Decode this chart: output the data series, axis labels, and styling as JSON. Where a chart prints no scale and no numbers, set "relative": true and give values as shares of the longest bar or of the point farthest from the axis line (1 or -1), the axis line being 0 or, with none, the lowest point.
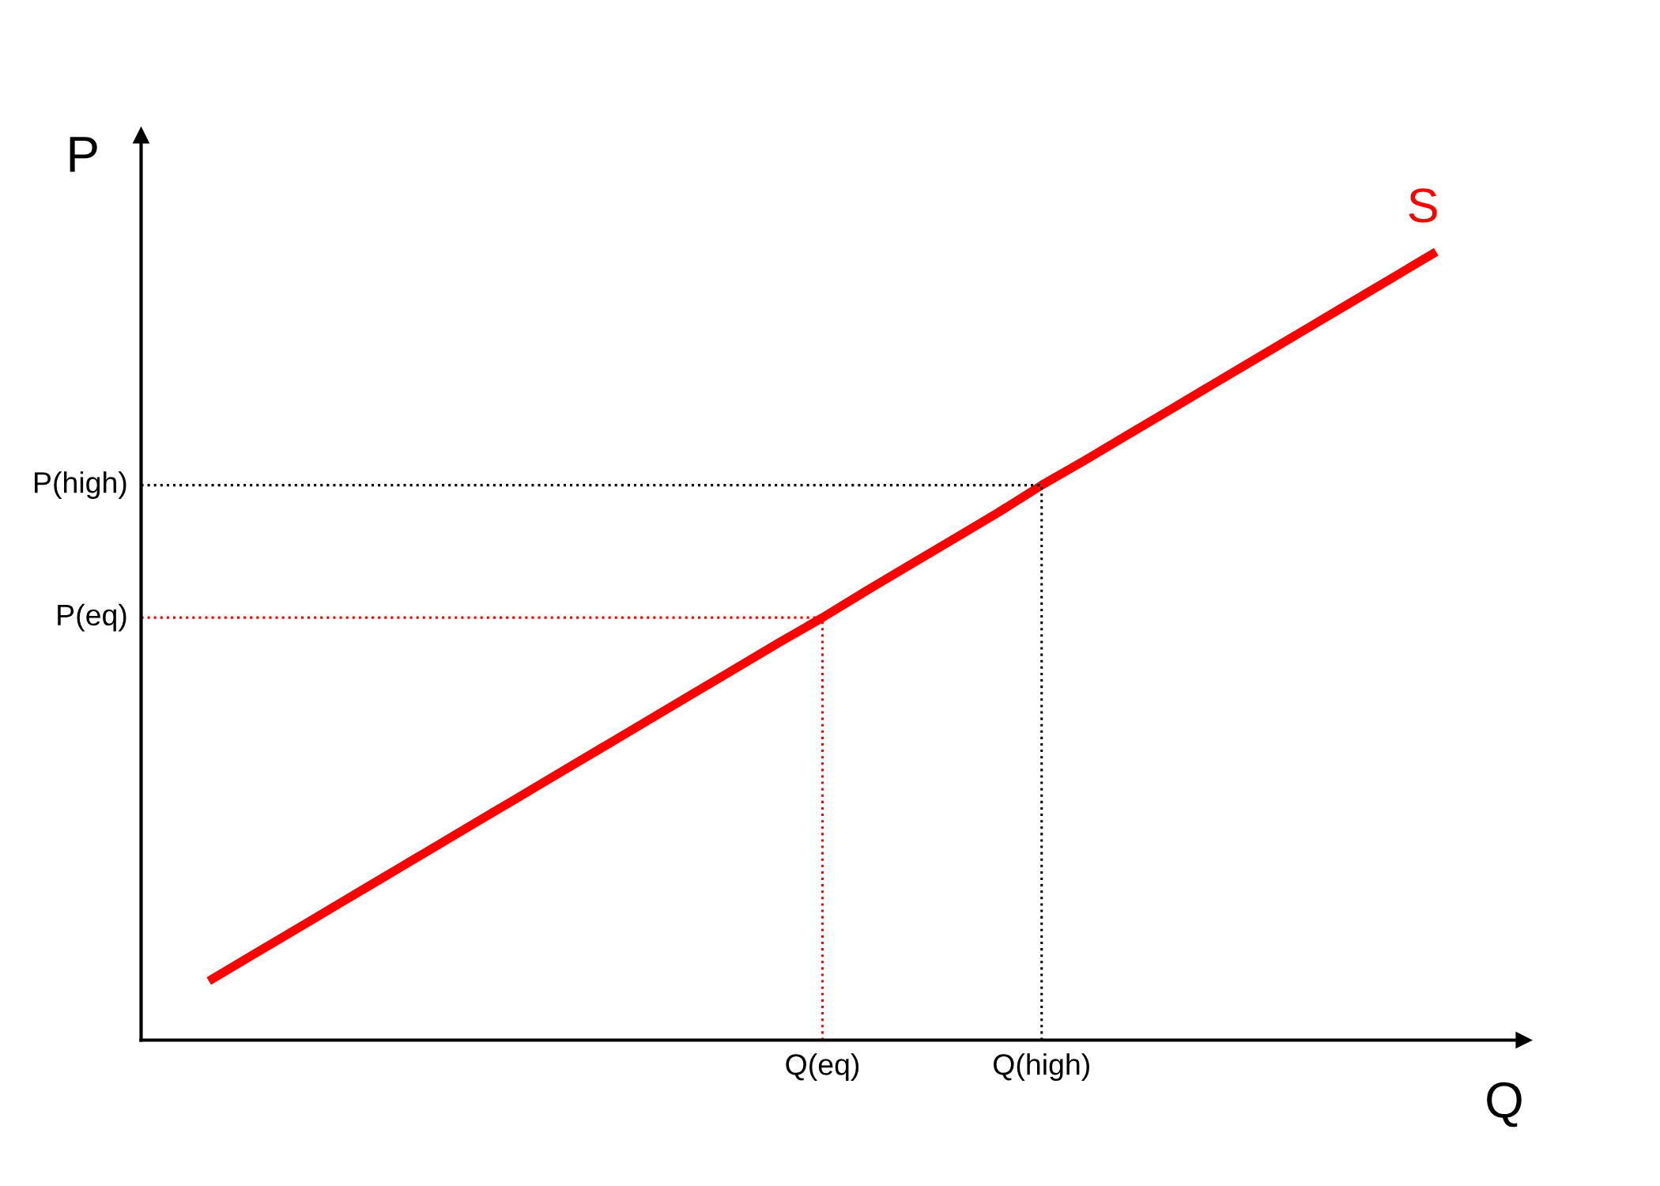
{
  "chart_data": {
    "type": "line",
    "relative": true,
    "ylabel": "P",
    "categories": [
      null,
      null,
      null,
      null,
      null,
      null,
      null,
      null,
      null,
      null,
      null,
      null,
      null,
      null,
      "Q(eq)",
      null,
      null,
      null,
      null,
      "Q(high)",
      null,
      null,
      null,
      null,
      null,
      null,
      null,
      null,
      null
    ],
    "series": [
      {
        "name": "S",
        "color": "#ff0000",
        "values": [
          0.075,
          0.108,
          0.141,
          0.174,
          0.207,
          0.24,
          0.273,
          0.306,
          0.339,
          0.372,
          0.405,
          0.438,
          0.471,
          0.504,
          0.536,
          0.57,
          0.603,
          0.636,
          0.669,
          0.704,
          0.736,
          0.769,
          0.802,
          0.835,
          0.868,
          0.901,
          0.934,
          0.967,
          1
        ]
      }
    ],
    "ref_lines": [
      {
        "axis": "y",
        "value": 0.704,
        "label": "P(high)",
        "color": "#000000",
        "line_style": "dotted"
      },
      {
        "axis": "y",
        "value": 0.536,
        "label": "P(eq)",
        "color": "#ff0000",
        "line_style": "dotted"
      },
      {
        "axis": "x",
        "value": "Q(eq)",
        "color": "#ff0000",
        "line_style": "dotted"
      },
      {
        "axis": "x",
        "value": "Q(high)",
        "color": "#000000",
        "line_style": "dotted"
      }
    ],
    "annotations": [
      "Q"
    ]
  }
}
